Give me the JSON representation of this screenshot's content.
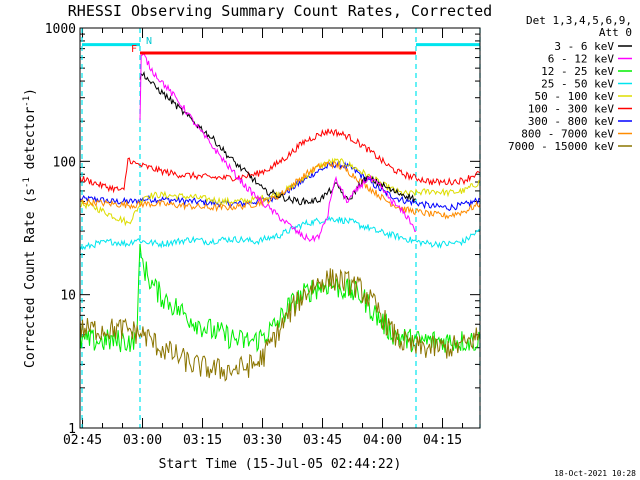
{
  "chart_data": {
    "type": "line",
    "title": "RHESSI Observing Summary Count Rates, Corrected",
    "xlabel": "Start Time (15-Jul-05 02:44:22)",
    "ylabel_main": "Corrected Count Rate (s",
    "ylabel_sup1": "-1",
    "ylabel_mid": " detector",
    "ylabel_sup2": "-1",
    "ylabel_end": ")",
    "yscale": "log",
    "ylim": [
      1,
      1000
    ],
    "xlim_minutes": [
      0,
      100
    ],
    "x_tick_labels": [
      "02:45",
      "03:00",
      "03:15",
      "03:30",
      "03:45",
      "04:00",
      "04:15"
    ],
    "y_tick_labels": [
      "1",
      "10",
      "100",
      "1000"
    ],
    "legend_header": [
      "Det 1,3,4,5,6,9,",
      "Att 0"
    ],
    "legend_position": "right",
    "timestamp": "18-Oct-2021 10:28",
    "flags": [
      {
        "label": "F",
        "color": "#ff0000"
      },
      {
        "label": "N",
        "color": "#00e5ee"
      }
    ],
    "flare_bar": {
      "x_start": 15,
      "x_end": 84,
      "y": 650,
      "color": "#ff0000"
    },
    "night_bars": [
      {
        "x_start": 0.5,
        "x_end": 15,
        "y": 750
      },
      {
        "x_start": 84,
        "x_end": 100,
        "y": 750
      }
    ],
    "night_lines_x": [
      0.5,
      15,
      84,
      100
    ],
    "series": [
      {
        "name": "3 - 6 keV",
        "color": "#000000",
        "x": [
          15,
          16,
          18,
          22,
          26,
          30,
          34,
          37,
          40,
          42,
          44,
          45,
          46,
          48,
          50,
          52,
          55,
          58,
          60,
          62,
          63,
          64,
          65,
          66,
          67,
          68,
          70,
          72,
          75,
          78,
          82,
          84
        ],
        "y": [
          430,
          450,
          380,
          300,
          230,
          180,
          140,
          110,
          90,
          80,
          70,
          65,
          60,
          58,
          55,
          52,
          50,
          50,
          52,
          58,
          62,
          66,
          62,
          55,
          50,
          55,
          68,
          75,
          68,
          60,
          55,
          52
        ]
      },
      {
        "name": "6 - 12 keV",
        "color": "#ff00ff",
        "x": [
          15,
          15.3,
          16,
          18,
          22,
          26,
          30,
          34,
          38,
          42,
          46,
          50,
          54,
          56,
          58,
          60,
          62,
          63,
          64,
          65,
          66,
          67,
          68,
          70,
          72,
          75,
          78,
          82,
          84
        ],
        "y": [
          200,
          600,
          620,
          480,
          350,
          250,
          170,
          120,
          85,
          62,
          48,
          38,
          30,
          27,
          26,
          28,
          40,
          60,
          72,
          65,
          55,
          50,
          55,
          65,
          75,
          65,
          50,
          38,
          30
        ]
      },
      {
        "name": "12 - 25 keV",
        "color": "#00ee00",
        "x": [
          0,
          14,
          15,
          16,
          18,
          20,
          24,
          28,
          32,
          36,
          40,
          44,
          46,
          48,
          50,
          52,
          54,
          56,
          58,
          60,
          62,
          64,
          66,
          68,
          70,
          72,
          74,
          76,
          78,
          80,
          82,
          84,
          100
        ],
        "y": [
          4.5,
          4.5,
          20,
          16,
          12,
          10,
          8,
          6.5,
          5.5,
          5,
          4.5,
          4.5,
          5,
          5.5,
          6.5,
          8,
          9,
          10,
          11,
          11.5,
          12,
          11.5,
          11,
          10.5,
          10,
          8.5,
          7,
          6,
          5.2,
          4.8,
          4.6,
          4.5,
          4.5
        ]
      },
      {
        "name": "25 - 50 keV",
        "color": "#00e5ee",
        "x": [
          0,
          4,
          8,
          12,
          14,
          16,
          20,
          24,
          28,
          32,
          36,
          40,
          44,
          48,
          50,
          52,
          54,
          56,
          58,
          60,
          62,
          64,
          66,
          68,
          70,
          72,
          74,
          76,
          78,
          80,
          82,
          84,
          88,
          92,
          96,
          98,
          100
        ],
        "y": [
          22,
          24,
          25,
          24,
          26,
          25,
          24,
          25,
          26,
          25,
          26,
          26,
          25,
          27,
          28,
          30,
          32,
          34,
          35,
          36,
          37,
          37,
          36,
          35,
          33,
          32,
          30,
          29,
          28,
          27,
          26,
          25,
          24,
          24,
          25,
          28,
          30
        ]
      },
      {
        "name": "50 - 100 keV",
        "color": "#dddd00",
        "x": [
          0,
          3,
          6,
          9,
          11,
          12,
          14,
          16,
          20,
          24,
          28,
          32,
          36,
          40,
          44,
          48,
          50,
          52,
          54,
          56,
          58,
          60,
          62,
          64,
          66,
          68,
          70,
          72,
          74,
          76,
          78,
          80,
          82,
          84,
          88,
          92,
          96,
          98,
          100
        ],
        "y": [
          48,
          46,
          42,
          38,
          36,
          34,
          42,
          55,
          56,
          55,
          54,
          52,
          50,
          50,
          52,
          55,
          58,
          62,
          68,
          75,
          85,
          92,
          98,
          100,
          98,
          92,
          85,
          78,
          72,
          66,
          62,
          58,
          57,
          58,
          60,
          58,
          60,
          65,
          70
        ]
      },
      {
        "name": "100 - 300 keV",
        "color": "#ff0000",
        "x": [
          0,
          3,
          6,
          9,
          11,
          12,
          13,
          14,
          16,
          20,
          24,
          28,
          32,
          36,
          40,
          44,
          48,
          50,
          52,
          54,
          56,
          58,
          60,
          62,
          64,
          66,
          68,
          70,
          72,
          74,
          76,
          78,
          80,
          82,
          84,
          88,
          92,
          96,
          98,
          100
        ],
        "y": [
          75,
          70,
          65,
          62,
          60,
          105,
          100,
          95,
          92,
          85,
          80,
          78,
          76,
          75,
          76,
          80,
          90,
          100,
          110,
          125,
          140,
          150,
          160,
          168,
          165,
          158,
          148,
          135,
          122,
          110,
          98,
          88,
          82,
          78,
          75,
          70,
          70,
          72,
          78,
          82
        ]
      },
      {
        "name": "300 - 800 keV",
        "color": "#0000ff",
        "x": [
          0,
          4,
          8,
          12,
          14,
          16,
          20,
          24,
          28,
          32,
          36,
          40,
          44,
          48,
          50,
          52,
          54,
          56,
          58,
          60,
          62,
          64,
          66,
          68,
          70,
          72,
          74,
          76,
          78,
          80,
          82,
          84,
          88,
          92,
          96,
          98,
          100
        ],
        "y": [
          52,
          52,
          50,
          50,
          50,
          52,
          52,
          51,
          50,
          49,
          48,
          48,
          50,
          53,
          56,
          60,
          66,
          72,
          80,
          86,
          92,
          95,
          93,
          88,
          80,
          72,
          65,
          59,
          55,
          52,
          50,
          49,
          46,
          45,
          47,
          49,
          52
        ]
      },
      {
        "name": "800 - 7000 keV",
        "color": "#ff8c00",
        "x": [
          0,
          4,
          8,
          12,
          14,
          16,
          20,
          24,
          28,
          32,
          36,
          40,
          44,
          48,
          50,
          52,
          54,
          56,
          58,
          60,
          62,
          64,
          66,
          68,
          70,
          72,
          74,
          76,
          78,
          80,
          82,
          84,
          88,
          92,
          96,
          98,
          100
        ],
        "y": [
          50,
          49,
          48,
          47,
          47,
          48,
          48,
          47,
          46,
          45,
          45,
          46,
          48,
          52,
          56,
          62,
          70,
          78,
          86,
          92,
          96,
          94,
          88,
          80,
          72,
          64,
          58,
          52,
          48,
          45,
          43,
          42,
          40,
          39,
          42,
          45,
          48
        ]
      },
      {
        "name": "7000 - 15000 keV",
        "color": "#8b7500",
        "x": [
          0,
          4,
          8,
          12,
          14,
          16,
          18,
          20,
          24,
          28,
          32,
          36,
          40,
          44,
          46,
          48,
          50,
          52,
          54,
          56,
          58,
          60,
          62,
          64,
          66,
          68,
          70,
          72,
          74,
          76,
          78,
          80,
          84,
          88,
          92,
          96,
          100
        ],
        "y": [
          5.5,
          5.5,
          5.5,
          5.5,
          5.2,
          5,
          4.5,
          4,
          3.5,
          3,
          2.8,
          2.7,
          2.8,
          3,
          3.5,
          4.5,
          5.5,
          7,
          8.5,
          10,
          11.5,
          12.5,
          13,
          13,
          12.5,
          12,
          11,
          9.5,
          8,
          6.5,
          5.2,
          4.5,
          4,
          4,
          4,
          4.2,
          5
        ]
      }
    ]
  }
}
